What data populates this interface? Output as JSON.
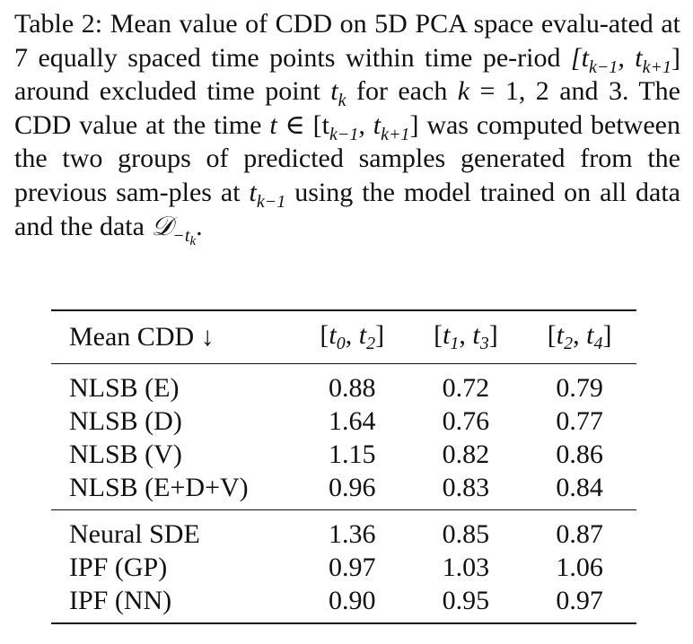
{
  "caption": {
    "label": "Table 2:",
    "text_1": " Mean value of CDD on 5D PCA space evalu-ated at 7 equally spaced time points within time pe-riod ",
    "interval_open": "[t",
    "sub_km1": "k−1",
    "comma": ", t",
    "sub_kp1": "k+1",
    "interval_close": "]",
    "text_2": " around excluded time point ",
    "t": "t",
    "sub_k": "k",
    "text_3": " for each ",
    "k": "k",
    "text_4": " = 1, 2 and 3. The CDD value at the time ",
    "t2": "t",
    "in_sym": " ∈ [t",
    "sub_km1_b": "k−1",
    "comma_b": ", t",
    "sub_kp1_b": "k+1",
    "close_b": "]",
    "text_5": " was computed between the two groups of predicted samples generated from the previous sam-ples at ",
    "t3": "t",
    "sub_km1_c": "k−1",
    "text_6": " using the model trained on all data and the data ",
    "D": "𝒟",
    "sub_minus_t": "−t",
    "sub_k_inner": "k",
    "period": "."
  },
  "table": {
    "header": {
      "method": "Mean CDD ↓",
      "cols": [
        {
          "open": "[t",
          "a": "0",
          "mid": ", t",
          "b": "2",
          "close": "]"
        },
        {
          "open": "[t",
          "a": "1",
          "mid": ", t",
          "b": "3",
          "close": "]"
        },
        {
          "open": "[t",
          "a": "2",
          "mid": ", t",
          "b": "4",
          "close": "]"
        }
      ]
    },
    "group1": [
      {
        "method": "NLSB (E)",
        "v": [
          "0.88",
          "0.72",
          "0.79"
        ],
        "best": [
          true,
          true,
          false
        ]
      },
      {
        "method": "NLSB (D)",
        "v": [
          "1.64",
          "0.76",
          "0.77"
        ],
        "best": [
          false,
          false,
          true
        ]
      },
      {
        "method": "NLSB (V)",
        "v": [
          "1.15",
          "0.82",
          "0.86"
        ],
        "best": [
          false,
          false,
          false
        ]
      },
      {
        "method": "NLSB (E+D+V)",
        "v": [
          "0.96",
          "0.83",
          "0.84"
        ],
        "best": [
          false,
          false,
          false
        ]
      }
    ],
    "group2": [
      {
        "method": "Neural SDE",
        "v": [
          "1.36",
          "0.85",
          "0.87"
        ],
        "best": [
          false,
          false,
          false
        ]
      },
      {
        "method": "IPF (GP)",
        "v": [
          "0.97",
          "1.03",
          "1.06"
        ],
        "best": [
          false,
          false,
          false
        ]
      },
      {
        "method": "IPF (NN)",
        "v": [
          "0.90",
          "0.95",
          "0.97"
        ],
        "best": [
          false,
          false,
          false
        ]
      }
    ]
  }
}
